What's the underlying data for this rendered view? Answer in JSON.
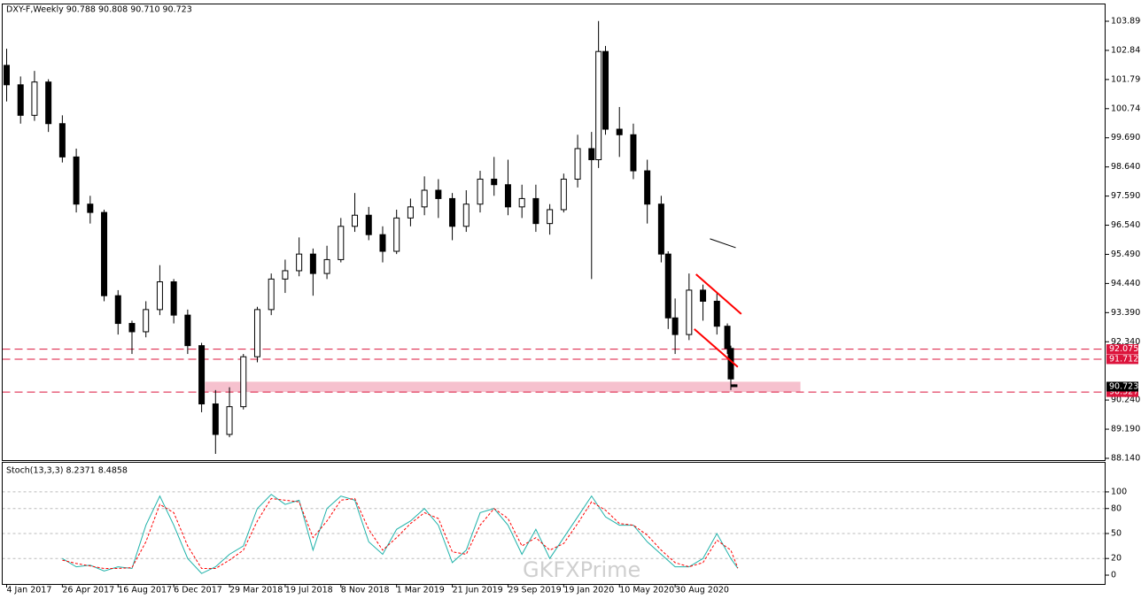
{
  "chart_data": [
    {
      "type": "candlestick",
      "title": "DXY-F,Weekly  90.788 90.808 90.710 90.723",
      "watermark": "GKFXPrime",
      "xlim": [
        -1.27,
        315.5
      ],
      "ylim": [
        88.076,
        104.496
      ],
      "yticks": [
        {
          "value": 103.89,
          "label": "103.890"
        },
        {
          "value": 102.84,
          "label": "102.840"
        },
        {
          "value": 101.79,
          "label": "101.790"
        },
        {
          "value": 100.74,
          "label": "100.740"
        },
        {
          "value": 99.69,
          "label": "99.690"
        },
        {
          "value": 98.64,
          "label": "98.640"
        },
        {
          "value": 97.59,
          "label": "97.590"
        },
        {
          "value": 96.54,
          "label": "96.540"
        },
        {
          "value": 95.49,
          "label": "95.490"
        },
        {
          "value": 94.44,
          "label": "94.440"
        },
        {
          "value": 93.39,
          "label": "93.390"
        },
        {
          "value": 92.34,
          "label": "92.340"
        },
        {
          "value": 90.24,
          "label": "90.240"
        },
        {
          "value": 89.19,
          "label": "89.190"
        },
        {
          "value": 88.14,
          "label": "88.140"
        }
      ],
      "x": [
        0,
        4,
        8,
        12,
        16,
        20,
        24,
        28,
        32,
        36,
        40,
        44,
        48,
        52,
        56,
        60,
        64,
        68,
        72,
        76,
        80,
        84,
        88,
        92,
        96,
        100,
        104,
        108,
        112,
        116,
        120,
        124,
        128,
        132,
        136,
        140,
        144,
        148,
        152,
        156,
        160,
        164,
        168,
        170,
        172,
        176,
        180,
        184,
        188,
        190,
        192,
        196,
        200,
        204,
        207,
        208,
        209
      ],
      "open": [
        102.3,
        101.6,
        100.5,
        101.7,
        100.2,
        99.0,
        97.3,
        97.0,
        94.0,
        93.0,
        92.7,
        93.5,
        94.5,
        93.3,
        92.2,
        90.1,
        89.0,
        90.0,
        91.8,
        93.5,
        94.6,
        94.9,
        95.5,
        94.8,
        95.3,
        96.5,
        96.9,
        96.2,
        95.6,
        96.8,
        97.2,
        97.8,
        97.5,
        96.5,
        97.3,
        98.2,
        98.0,
        97.2,
        97.5,
        96.6,
        97.1,
        98.2,
        99.3,
        98.9,
        102.8,
        100.0,
        99.8,
        98.5,
        97.3,
        95.5,
        93.2,
        92.6,
        94.2,
        93.8,
        92.9,
        92.1,
        90.788
      ],
      "high": [
        102.9,
        101.9,
        102.1,
        101.8,
        100.5,
        99.3,
        97.6,
        97.1,
        94.2,
        93.1,
        93.8,
        95.1,
        94.6,
        93.5,
        92.3,
        90.6,
        90.7,
        91.9,
        93.6,
        94.8,
        95.3,
        96.1,
        95.7,
        95.8,
        96.8,
        97.7,
        97.2,
        96.5,
        97.1,
        97.5,
        98.3,
        98.2,
        97.7,
        97.8,
        98.5,
        99.0,
        98.9,
        98.0,
        98.0,
        97.3,
        98.4,
        99.8,
        99.9,
        103.9,
        103.0,
        100.8,
        100.2,
        98.9,
        97.6,
        95.6,
        93.9,
        94.8,
        94.4,
        94.1,
        93.0,
        92.2,
        90.808
      ],
      "low": [
        101.0,
        100.2,
        100.3,
        99.9,
        98.8,
        97.0,
        96.6,
        93.8,
        92.6,
        91.9,
        92.5,
        93.3,
        93.0,
        91.9,
        89.8,
        88.3,
        88.9,
        89.9,
        91.6,
        93.3,
        94.1,
        94.7,
        94.0,
        94.6,
        95.2,
        96.3,
        96.0,
        95.2,
        95.5,
        96.5,
        96.9,
        96.8,
        96.0,
        96.3,
        97.0,
        97.6,
        96.9,
        96.8,
        96.3,
        96.2,
        97.0,
        97.9,
        94.6,
        98.6,
        99.8,
        99.0,
        98.2,
        96.6,
        95.2,
        92.8,
        91.9,
        92.4,
        93.1,
        92.6,
        91.9,
        90.6,
        90.71
      ],
      "close": [
        101.6,
        100.5,
        101.7,
        100.2,
        99.0,
        97.3,
        97.0,
        94.0,
        93.0,
        92.7,
        93.5,
        94.5,
        93.3,
        92.2,
        90.1,
        89.0,
        90.0,
        91.8,
        93.5,
        94.6,
        94.9,
        95.5,
        94.8,
        95.3,
        96.5,
        96.9,
        96.2,
        95.6,
        96.8,
        97.2,
        97.8,
        97.5,
        96.5,
        97.3,
        98.2,
        98.0,
        97.2,
        97.5,
        96.6,
        97.1,
        98.2,
        99.3,
        98.9,
        102.8,
        100.0,
        99.8,
        98.5,
        97.3,
        95.5,
        93.2,
        92.6,
        94.2,
        93.8,
        92.9,
        92.1,
        91.0,
        90.723
      ],
      "levels": [
        92.075,
        91.712,
        90.527
      ],
      "level_color": "#dc143c",
      "last_price": 90.723,
      "zone": {
        "x": [
          57,
          228
        ],
        "y": [
          90.527,
          90.9
        ],
        "color": "#f4b6c6"
      },
      "lines": [
        {
          "color": "#ff0000",
          "x": [
            198,
            211
          ],
          "y": [
            94.77,
            93.34
          ]
        },
        {
          "color": "#ff0000",
          "x": [
            197.5,
            210
          ],
          "y": [
            92.8,
            91.43
          ]
        },
        {
          "color": "#000000",
          "x": [
            202,
            209.4
          ],
          "y": [
            96.05,
            95.73
          ]
        }
      ]
    },
    {
      "type": "line",
      "title": "Stoch(13,3,3) 8.2371 8.4858",
      "xlim": [
        -1.27,
        315.5
      ],
      "ylim": [
        -10.6,
        135
      ],
      "yticks": [
        0,
        20,
        50,
        80,
        100
      ],
      "grid": true,
      "xticks": [
        {
          "value": 0,
          "label": "4 Jan 2017"
        },
        {
          "value": 16,
          "label": "26 Apr 2017"
        },
        {
          "value": 32,
          "label": "16 Aug 2017"
        },
        {
          "value": 48,
          "label": "6 Dec 2017"
        },
        {
          "value": 64,
          "label": "29 Mar 2018"
        },
        {
          "value": 80,
          "label": "19 Jul 2018"
        },
        {
          "value": 96,
          "label": "8 Nov 2018"
        },
        {
          "value": 112,
          "label": "1 Mar 2019"
        },
        {
          "value": 128,
          "label": "21 Jun 2019"
        },
        {
          "value": 144,
          "label": "29 Sep 2019"
        },
        {
          "value": 160,
          "label": "19 Jan 2020"
        },
        {
          "value": 176,
          "label": "10 May 2020"
        },
        {
          "value": 192,
          "label": "30 Aug 2020"
        }
      ],
      "x": [
        16,
        20,
        24,
        28,
        32,
        36,
        40,
        44,
        48,
        52,
        56,
        60,
        64,
        68,
        72,
        76,
        80,
        84,
        88,
        92,
        96,
        100,
        104,
        108,
        112,
        116,
        120,
        124,
        128,
        132,
        136,
        140,
        144,
        148,
        152,
        156,
        160,
        164,
        168,
        172,
        176,
        180,
        184,
        188,
        192,
        196,
        200,
        204,
        208,
        210
      ],
      "series": [
        {
          "color": "#20b2aa",
          "dash": false,
          "values": [
            20,
            10,
            12,
            5,
            10,
            8,
            60,
            95,
            60,
            20,
            2,
            10,
            25,
            35,
            80,
            97,
            85,
            90,
            30,
            80,
            95,
            90,
            40,
            25,
            55,
            65,
            80,
            60,
            15,
            30,
            75,
            80,
            60,
            25,
            55,
            20,
            45,
            70,
            95,
            70,
            60,
            60,
            40,
            25,
            10,
            10,
            20,
            50,
            20,
            8.2371
          ]
        },
        {
          "color": "#ff0000",
          "dash": true,
          "values": [
            18,
            14,
            11,
            8,
            8,
            9,
            40,
            85,
            75,
            35,
            8,
            8,
            18,
            30,
            65,
            92,
            90,
            88,
            45,
            65,
            90,
            92,
            55,
            30,
            45,
            62,
            75,
            68,
            28,
            25,
            60,
            80,
            68,
            35,
            45,
            30,
            38,
            62,
            88,
            78,
            62,
            60,
            48,
            30,
            15,
            10,
            15,
            42,
            30,
            8.4858
          ]
        }
      ]
    }
  ]
}
